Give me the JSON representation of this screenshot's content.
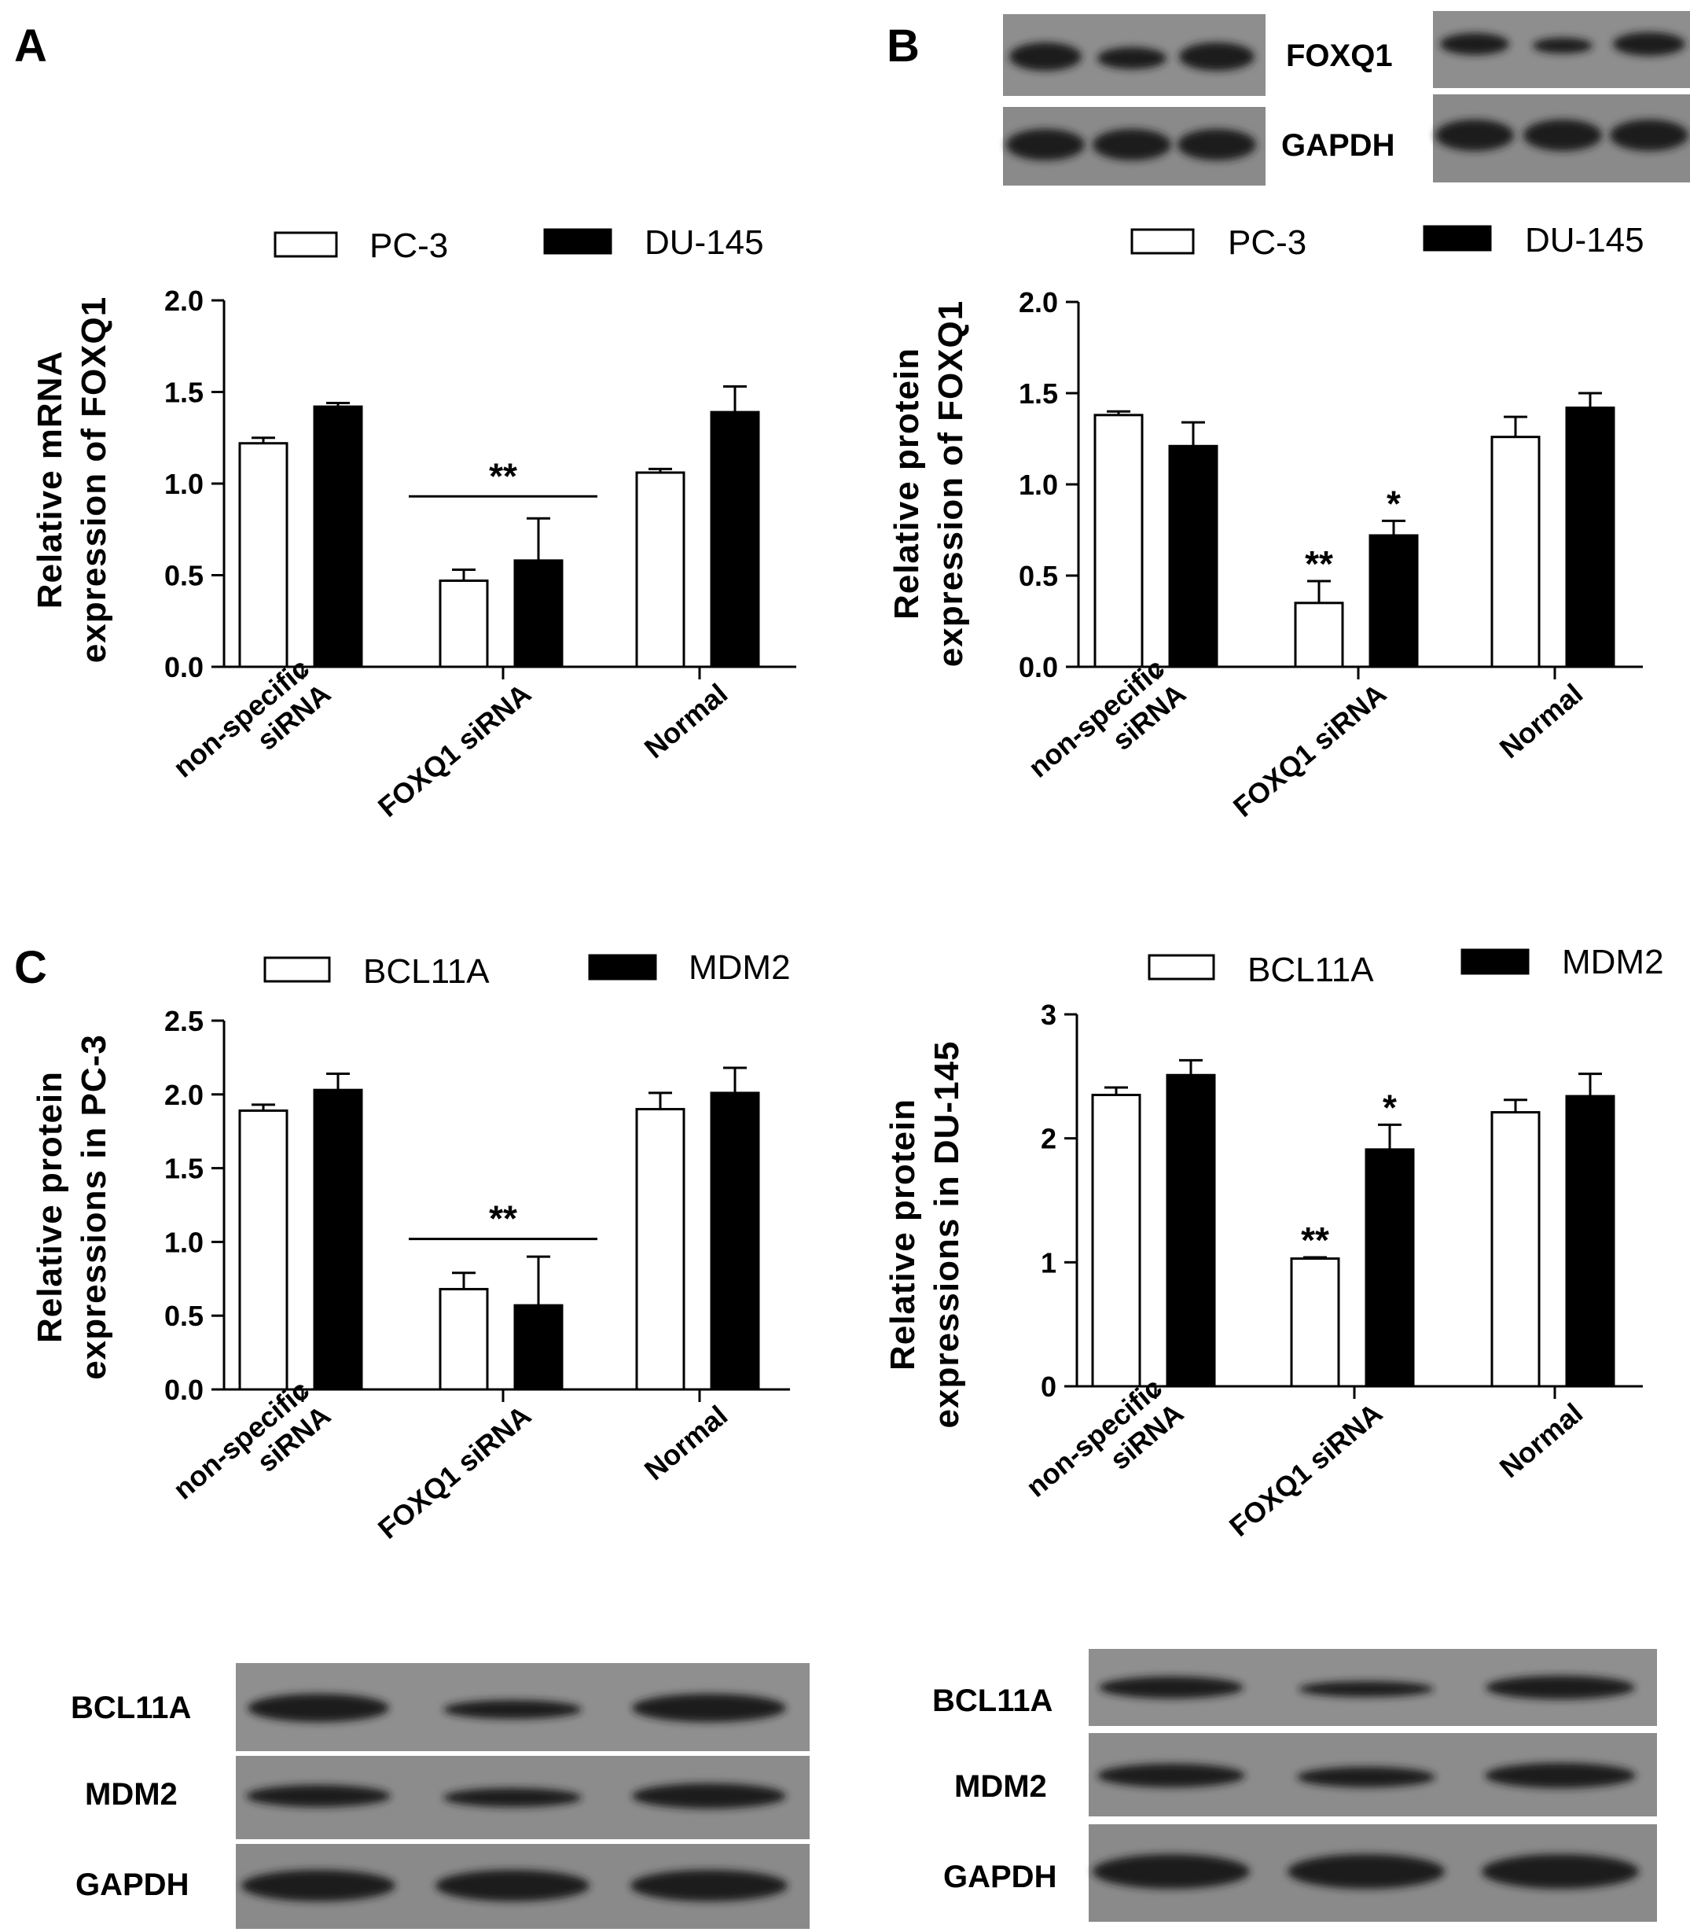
{
  "panels": {
    "A": {
      "letter": "A",
      "chart_data": {
        "type": "bar",
        "ylabel": [
          "Relative mRNA",
          "expression of FOXQ1"
        ],
        "categories": [
          [
            "non-specific",
            "siRNA"
          ],
          [
            "FOXQ1 siRNA"
          ],
          [
            "Normal"
          ]
        ],
        "ylim": [
          0,
          2.0
        ],
        "yticks": [
          "0.0",
          "0.5",
          "1.0",
          "1.5",
          "2.0"
        ],
        "series": [
          {
            "name": "PC-3",
            "fill": "#ffffff",
            "values": [
              1.22,
              0.47,
              1.06
            ],
            "errors": [
              0.03,
              0.06,
              0.02
            ]
          },
          {
            "name": "DU-145",
            "fill": "#000000",
            "values": [
              1.42,
              0.58,
              1.39
            ],
            "errors": [
              0.02,
              0.23,
              0.14
            ]
          }
        ],
        "annotations": [
          {
            "text": "**",
            "type": "bracket",
            "category": 1,
            "y": 0.93
          }
        ],
        "legend": "top"
      }
    },
    "B": {
      "letter": "B",
      "chart_data": {
        "type": "bar",
        "ylabel": [
          "Relative protein",
          "expression of FOXQ1"
        ],
        "categories": [
          [
            "non-specific",
            "siRNA"
          ],
          [
            "FOXQ1 siRNA"
          ],
          [
            "Normal"
          ]
        ],
        "ylim": [
          0,
          2.0
        ],
        "yticks": [
          "0.0",
          "0.5",
          "1.0",
          "1.5",
          "2.0"
        ],
        "series": [
          {
            "name": "PC-3",
            "fill": "#ffffff",
            "values": [
              1.38,
              0.35,
              1.26
            ],
            "errors": [
              0.02,
              0.12,
              0.11
            ]
          },
          {
            "name": "DU-145",
            "fill": "#000000",
            "values": [
              1.21,
              0.72,
              1.42
            ],
            "errors": [
              0.13,
              0.08,
              0.08
            ]
          }
        ],
        "annotations": [
          {
            "text": "**",
            "type": "bar",
            "category": 1,
            "series": 0
          },
          {
            "text": "*",
            "type": "bar",
            "category": 1,
            "series": 1
          }
        ],
        "legend": "top"
      },
      "blot": {
        "labels": [
          "FOXQ1",
          "GAPDH"
        ]
      }
    },
    "C_left": {
      "letter": "C",
      "chart_data": {
        "type": "bar",
        "ylabel": [
          "Relative protein",
          "expressions in PC-3"
        ],
        "categories": [
          [
            "non-specific",
            "siRNA"
          ],
          [
            "FOXQ1 siRNA"
          ],
          [
            "Normal"
          ]
        ],
        "ylim": [
          0,
          2.5
        ],
        "yticks": [
          "0.0",
          "0.5",
          "1.0",
          "1.5",
          "2.0",
          "2.5"
        ],
        "series": [
          {
            "name": "BCL11A",
            "fill": "#ffffff",
            "values": [
              1.89,
              0.68,
              1.9
            ],
            "errors": [
              0.04,
              0.11,
              0.11
            ]
          },
          {
            "name": "MDM2",
            "fill": "#000000",
            "values": [
              2.03,
              0.57,
              2.01
            ],
            "errors": [
              0.11,
              0.33,
              0.17
            ]
          }
        ],
        "annotations": [
          {
            "text": "**",
            "type": "bracket",
            "category": 1,
            "y": 1.02
          }
        ],
        "legend": "top"
      },
      "blot": {
        "labels": [
          "BCL11A",
          "MDM2",
          "GAPDH"
        ]
      }
    },
    "C_right": {
      "chart_data": {
        "type": "bar",
        "ylabel": [
          "Relative protein",
          "expressions in DU-145"
        ],
        "categories": [
          [
            "non-specific",
            "siRNA"
          ],
          [
            "FOXQ1 siRNA"
          ],
          [
            "Normal"
          ]
        ],
        "ylim": [
          0,
          3
        ],
        "yticks": [
          "0",
          "1",
          "2",
          "3"
        ],
        "series": [
          {
            "name": "BCL11A",
            "fill": "#ffffff",
            "values": [
              2.35,
              1.03,
              2.21
            ],
            "errors": [
              0.06,
              0.01,
              0.1
            ]
          },
          {
            "name": "MDM2",
            "fill": "#000000",
            "values": [
              2.51,
              1.91,
              2.34
            ],
            "errors": [
              0.12,
              0.2,
              0.18
            ]
          }
        ],
        "annotations": [
          {
            "text": "**",
            "type": "bar",
            "category": 1,
            "series": 0
          },
          {
            "text": "*",
            "type": "bar",
            "category": 1,
            "series": 1
          }
        ],
        "legend": "top"
      },
      "blot": {
        "labels": [
          "BCL11A",
          "MDM2",
          "GAPDH"
        ]
      }
    }
  }
}
